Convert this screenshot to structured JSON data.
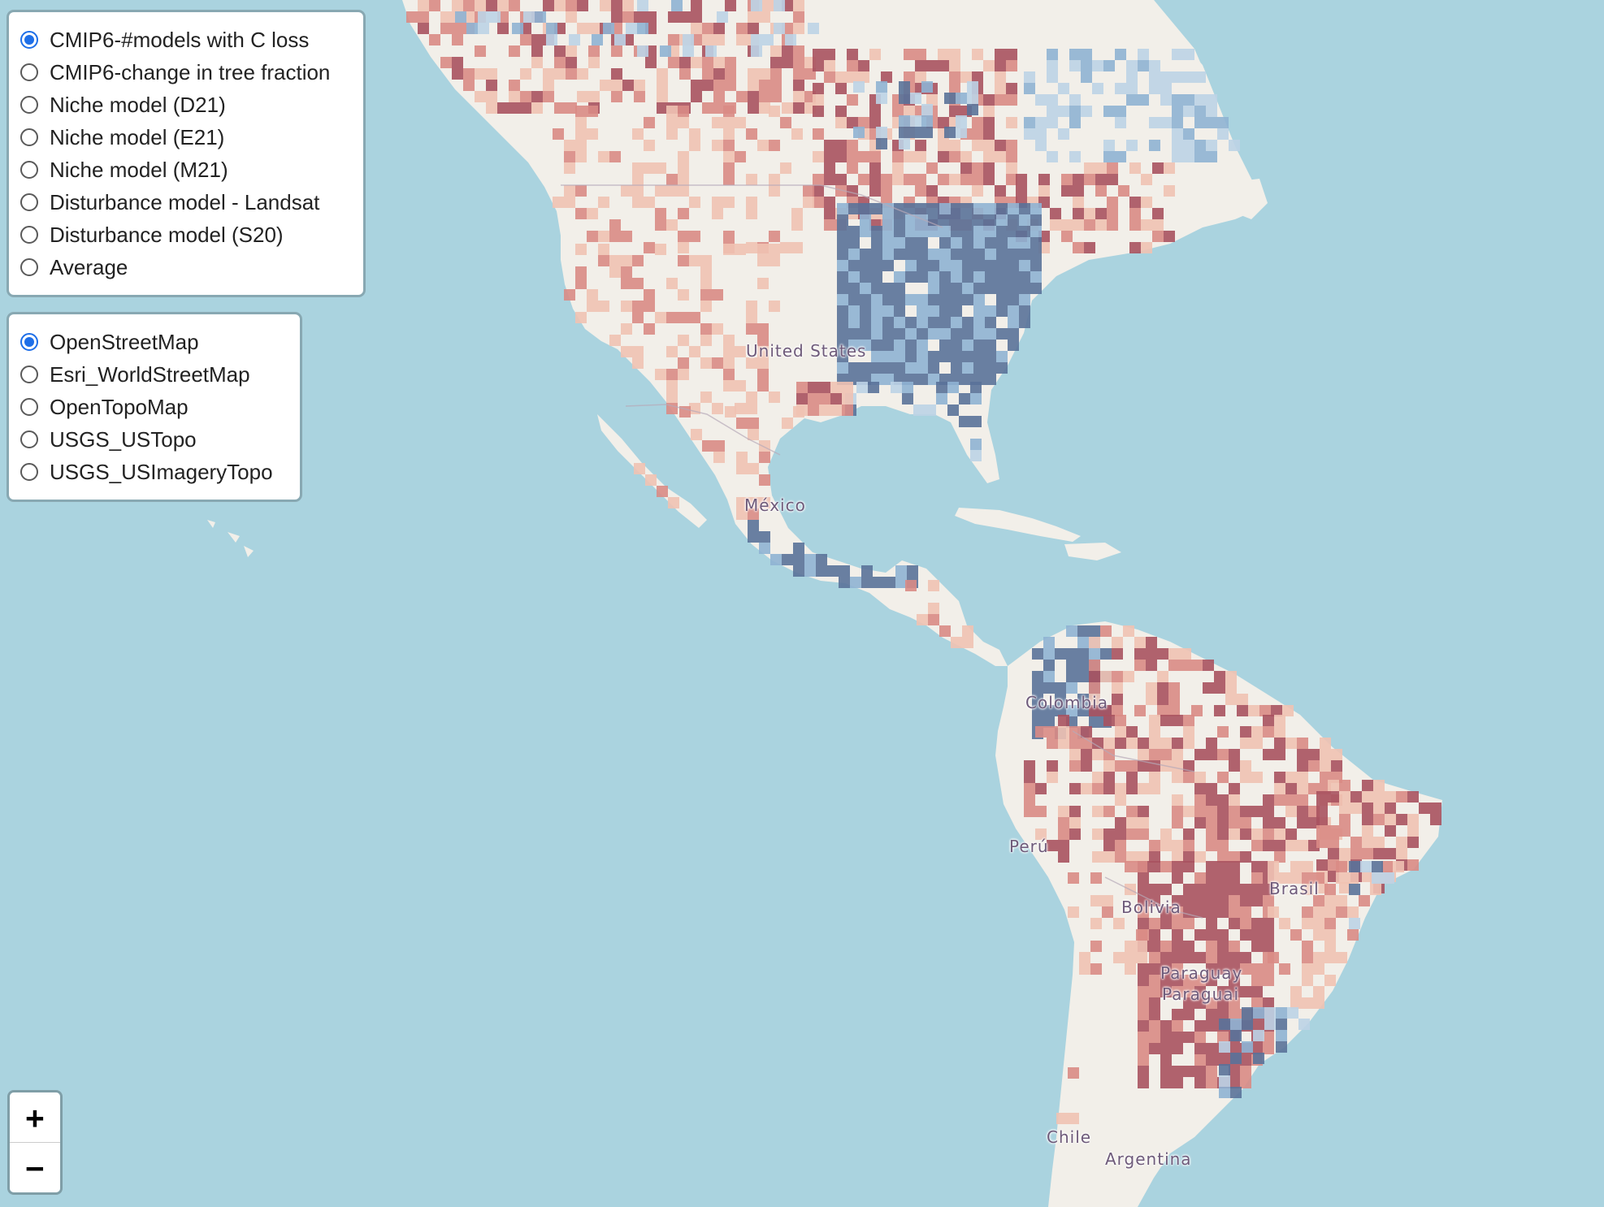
{
  "overlay_layers": {
    "items": [
      {
        "label": "CMIP6-#models with C loss",
        "checked": true
      },
      {
        "label": "CMIP6-change in tree fraction",
        "checked": false
      },
      {
        "label": "Niche model (D21)",
        "checked": false
      },
      {
        "label": "Niche model (E21)",
        "checked": false
      },
      {
        "label": "Niche model (M21)",
        "checked": false
      },
      {
        "label": "Disturbance model - Landsat",
        "checked": false
      },
      {
        "label": "Disturbance model (S20)",
        "checked": false
      },
      {
        "label": "Average",
        "checked": false
      }
    ]
  },
  "base_layers": {
    "items": [
      {
        "label": "OpenStreetMap",
        "checked": true
      },
      {
        "label": "Esri_WorldStreetMap",
        "checked": false
      },
      {
        "label": "OpenTopoMap",
        "checked": false
      },
      {
        "label": "USGS_USTopo",
        "checked": false
      },
      {
        "label": "USGS_USImageryTopo",
        "checked": false
      }
    ]
  },
  "map": {
    "place_labels": {
      "united_states": "United States",
      "mexico": "México",
      "colombia": "Colombia",
      "peru": "Perú",
      "brasil": "Brasil",
      "bolivia": "Bolivia",
      "paraguay": "Paraguay",
      "paraguai": "Paraguai",
      "chile": "Chile",
      "argentina": "Argentina"
    },
    "colors": {
      "ocean": "#aad3df",
      "land": "#f2efe9",
      "strong_loss": "#a8525f",
      "moderate_loss": "#d98b85",
      "light_loss": "#f0c2b2",
      "light_gain": "#bcd3e6",
      "moderate_gain": "#8fb2d3",
      "strong_gain": "#5a7299"
    }
  },
  "zoom": {
    "zoom_in": "+",
    "zoom_out": "−"
  }
}
